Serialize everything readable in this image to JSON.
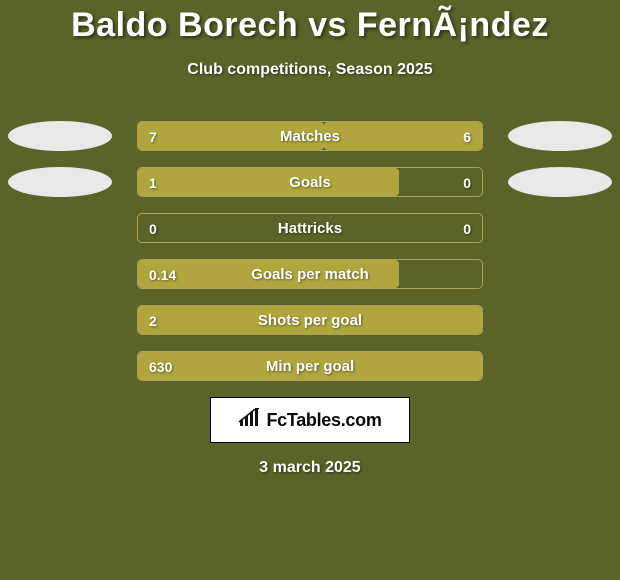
{
  "page": {
    "title": "Baldo Borech vs FernÃ¡ndez",
    "subtitle": "Club competitions, Season 2025",
    "date": "3 march 2025",
    "background_color": "#5b6329"
  },
  "brand": {
    "text": "FcTables.com",
    "icon_name": "bar-chart-icon"
  },
  "colors": {
    "bar_left": "#b0a63d",
    "bar_right": "#b0a63d",
    "track_border": "#a9a45a",
    "avatar": "#e9e9e9",
    "text": "#ffffff"
  },
  "stats": [
    {
      "label": "Matches",
      "left_value": "7",
      "right_value": "6",
      "left_pct": 54,
      "right_pct": 46,
      "show_avatar": true
    },
    {
      "label": "Goals",
      "left_value": "1",
      "right_value": "0",
      "left_pct": 76,
      "right_pct": 0,
      "show_avatar": true
    },
    {
      "label": "Hattricks",
      "left_value": "0",
      "right_value": "0",
      "left_pct": 0,
      "right_pct": 0,
      "show_avatar": false
    },
    {
      "label": "Goals per match",
      "left_value": "0.14",
      "right_value": "",
      "left_pct": 76,
      "right_pct": 0,
      "show_avatar": false
    },
    {
      "label": "Shots per goal",
      "left_value": "2",
      "right_value": "",
      "left_pct": 100,
      "right_pct": 0,
      "show_avatar": false
    },
    {
      "label": "Min per goal",
      "left_value": "630",
      "right_value": "",
      "left_pct": 100,
      "right_pct": 0,
      "show_avatar": false
    }
  ]
}
